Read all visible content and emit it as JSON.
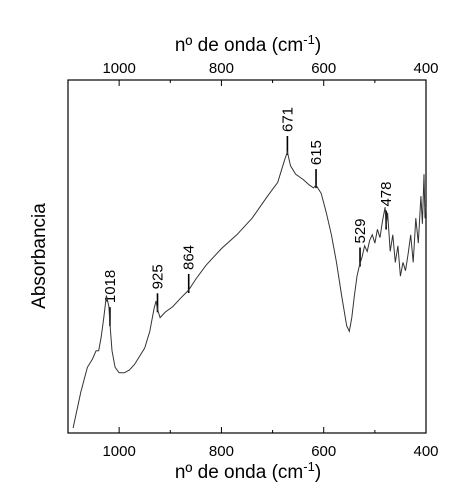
{
  "chart_data": {
    "type": "line",
    "xlabel": "nº de onda (cm-1)",
    "xlabel_base": "nº de onda (cm",
    "xlabel_sup": "-1",
    "xlabel_close": ")",
    "ylabel": "Absorbancia",
    "xlim": [
      1100,
      400
    ],
    "x_reversed": true,
    "y_ticks_shown": false,
    "x_ticks": [
      1000,
      800,
      600,
      400
    ],
    "x_tick_labels": [
      "1000",
      "800",
      "600",
      "400"
    ],
    "grid": false,
    "legend": "none",
    "line_color": "#333333",
    "peak_labels": [
      {
        "x": 1018,
        "label": "1018"
      },
      {
        "x": 925,
        "label": "925"
      },
      {
        "x": 864,
        "label": "864"
      },
      {
        "x": 671,
        "label": "671"
      },
      {
        "x": 615,
        "label": "615"
      },
      {
        "x": 529,
        "label": "529"
      },
      {
        "x": 478,
        "label": "478"
      }
    ],
    "series": [
      {
        "x": [
          1090,
          1075,
          1062,
          1052,
          1045,
          1040,
          1035,
          1030,
          1025,
          1020,
          1018,
          1014,
          1008,
          1000,
          990,
          980,
          970,
          960,
          950,
          940,
          932,
          928,
          925,
          920,
          910,
          895,
          880,
          864,
          850,
          830,
          800,
          770,
          740,
          710,
          690,
          680,
          675,
          671,
          665,
          655,
          640,
          628,
          620,
          615,
          605,
          595,
          585,
          575,
          565,
          555,
          550,
          545,
          540,
          535,
          530,
          525,
          520,
          515,
          510,
          505,
          500,
          495,
          490,
          485,
          480,
          478,
          475,
          470,
          465,
          460,
          455,
          450,
          445,
          440,
          435,
          430,
          425,
          420,
          415,
          410,
          407,
          404,
          402,
          400
        ],
        "y": [
          0.0,
          0.13,
          0.22,
          0.25,
          0.28,
          0.28,
          0.33,
          0.4,
          0.48,
          0.44,
          0.38,
          0.28,
          0.22,
          0.2,
          0.2,
          0.21,
          0.23,
          0.26,
          0.29,
          0.35,
          0.43,
          0.46,
          0.43,
          0.4,
          0.42,
          0.44,
          0.47,
          0.5,
          0.54,
          0.59,
          0.65,
          0.7,
          0.76,
          0.84,
          0.89,
          0.95,
          0.98,
          1.0,
          0.95,
          0.92,
          0.9,
          0.88,
          0.87,
          0.88,
          0.85,
          0.78,
          0.7,
          0.6,
          0.48,
          0.37,
          0.35,
          0.4,
          0.48,
          0.55,
          0.59,
          0.62,
          0.66,
          0.64,
          0.68,
          0.7,
          0.67,
          0.72,
          0.69,
          0.75,
          0.8,
          0.73,
          0.78,
          0.64,
          0.7,
          0.6,
          0.66,
          0.55,
          0.6,
          0.57,
          0.63,
          0.7,
          0.6,
          0.76,
          0.67,
          0.84,
          0.74,
          0.92,
          0.76,
          0.8
        ]
      }
    ]
  }
}
